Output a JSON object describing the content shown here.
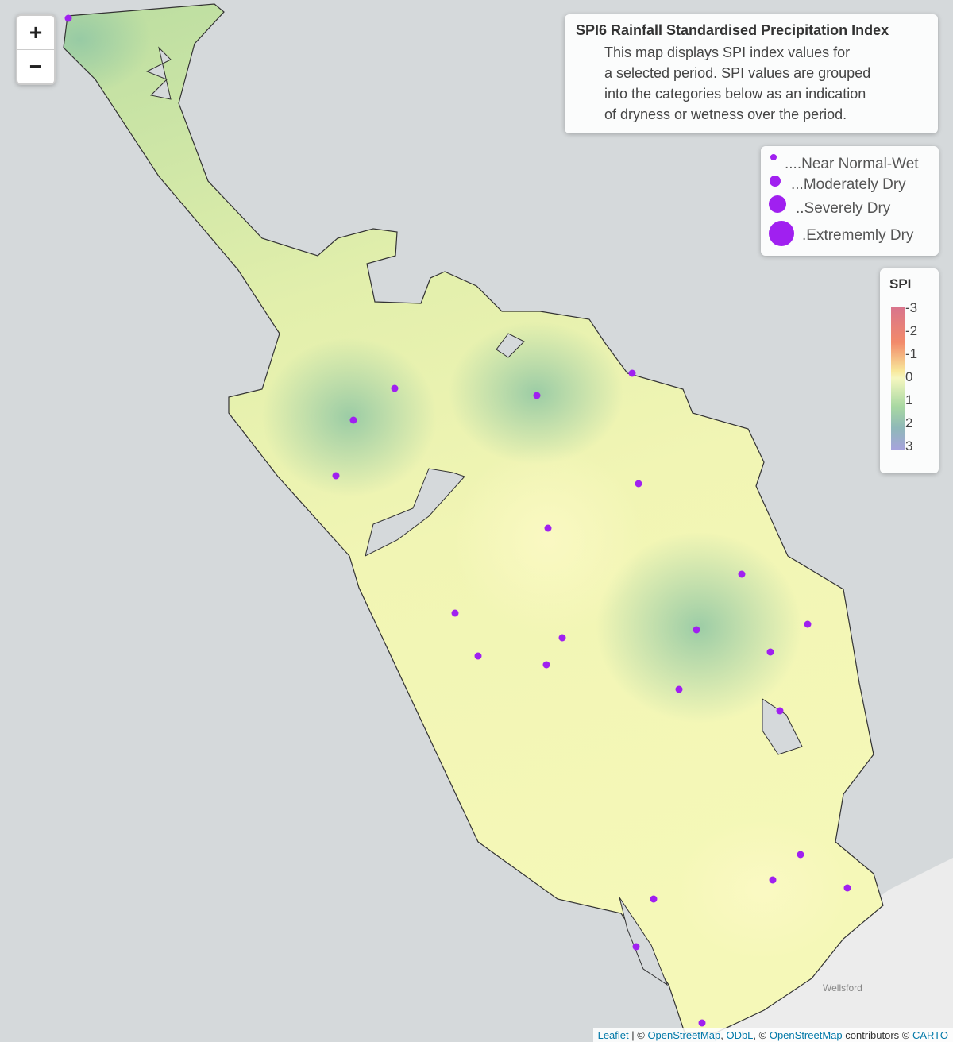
{
  "zoom": {
    "in": "+",
    "out": "−"
  },
  "info": {
    "title": "SPI6 Rainfall Standardised Precipitation Index",
    "lines": [
      "This map displays SPI index values for",
      "a selected period. SPI values are grouped",
      "into the categories below as an indication",
      "of dryness or wetness over the period."
    ]
  },
  "categories": [
    "....Near Normal-Wet",
    "...Moderately Dry",
    "..Severely Dry",
    ".Extrememly Dry"
  ],
  "spi_legend": {
    "title": "SPI",
    "ticks": [
      "-3",
      "-2",
      "-1",
      "0",
      "1",
      "2",
      "3"
    ]
  },
  "place_labels": [
    "Wellsford"
  ],
  "attribution": [
    "Leaflet",
    " | © ",
    "OpenStreetMap",
    ", ",
    "ODbL",
    ", © ",
    "OpenStreetMap",
    " contributors © ",
    "CARTO"
  ]
}
